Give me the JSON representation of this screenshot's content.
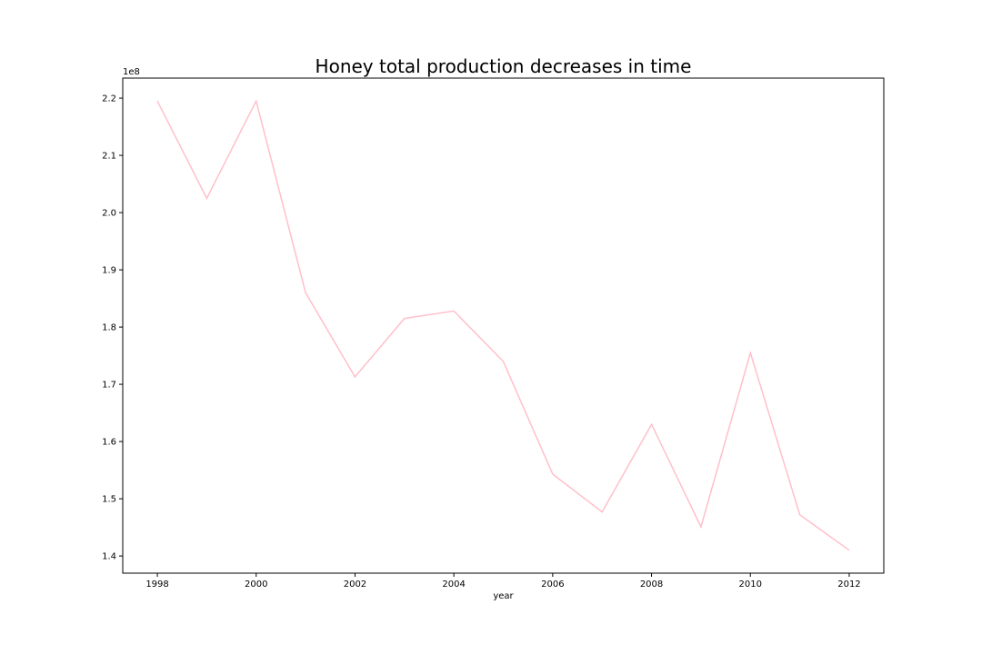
{
  "chart_data": {
    "type": "line",
    "title": "Honey total production decreases in time",
    "xlabel": "year",
    "ylabel": "",
    "y_offset_label": "1e8",
    "xlim": [
      1997.3,
      2012.7
    ],
    "ylim": [
      1.37,
      2.235
    ],
    "x_ticks": [
      1998,
      2000,
      2002,
      2004,
      2006,
      2008,
      2010,
      2012
    ],
    "y_ticks": [
      1.4,
      1.5,
      1.6,
      1.7,
      1.8,
      1.9,
      2.0,
      2.1,
      2.2
    ],
    "x_tick_labels": [
      "1998",
      "2000",
      "2002",
      "2004",
      "2006",
      "2008",
      "2010",
      "2012"
    ],
    "y_tick_labels": [
      "1.4",
      "1.5",
      "1.6",
      "1.7",
      "1.8",
      "1.9",
      "2.0",
      "2.1",
      "2.2"
    ],
    "grid": false,
    "line_color": "#ffc0cb",
    "series": [
      {
        "x": [
          1998,
          1999,
          2000,
          2001,
          2002,
          2003,
          2004,
          2005,
          2006,
          2007,
          2008,
          2009,
          2010,
          2011,
          2012
        ],
        "values": [
          2.195,
          2.025,
          2.195,
          1.86,
          1.713,
          1.815,
          1.828,
          1.74,
          1.543,
          1.477,
          1.63,
          1.451,
          1.755,
          1.472,
          1.41
        ]
      }
    ]
  }
}
